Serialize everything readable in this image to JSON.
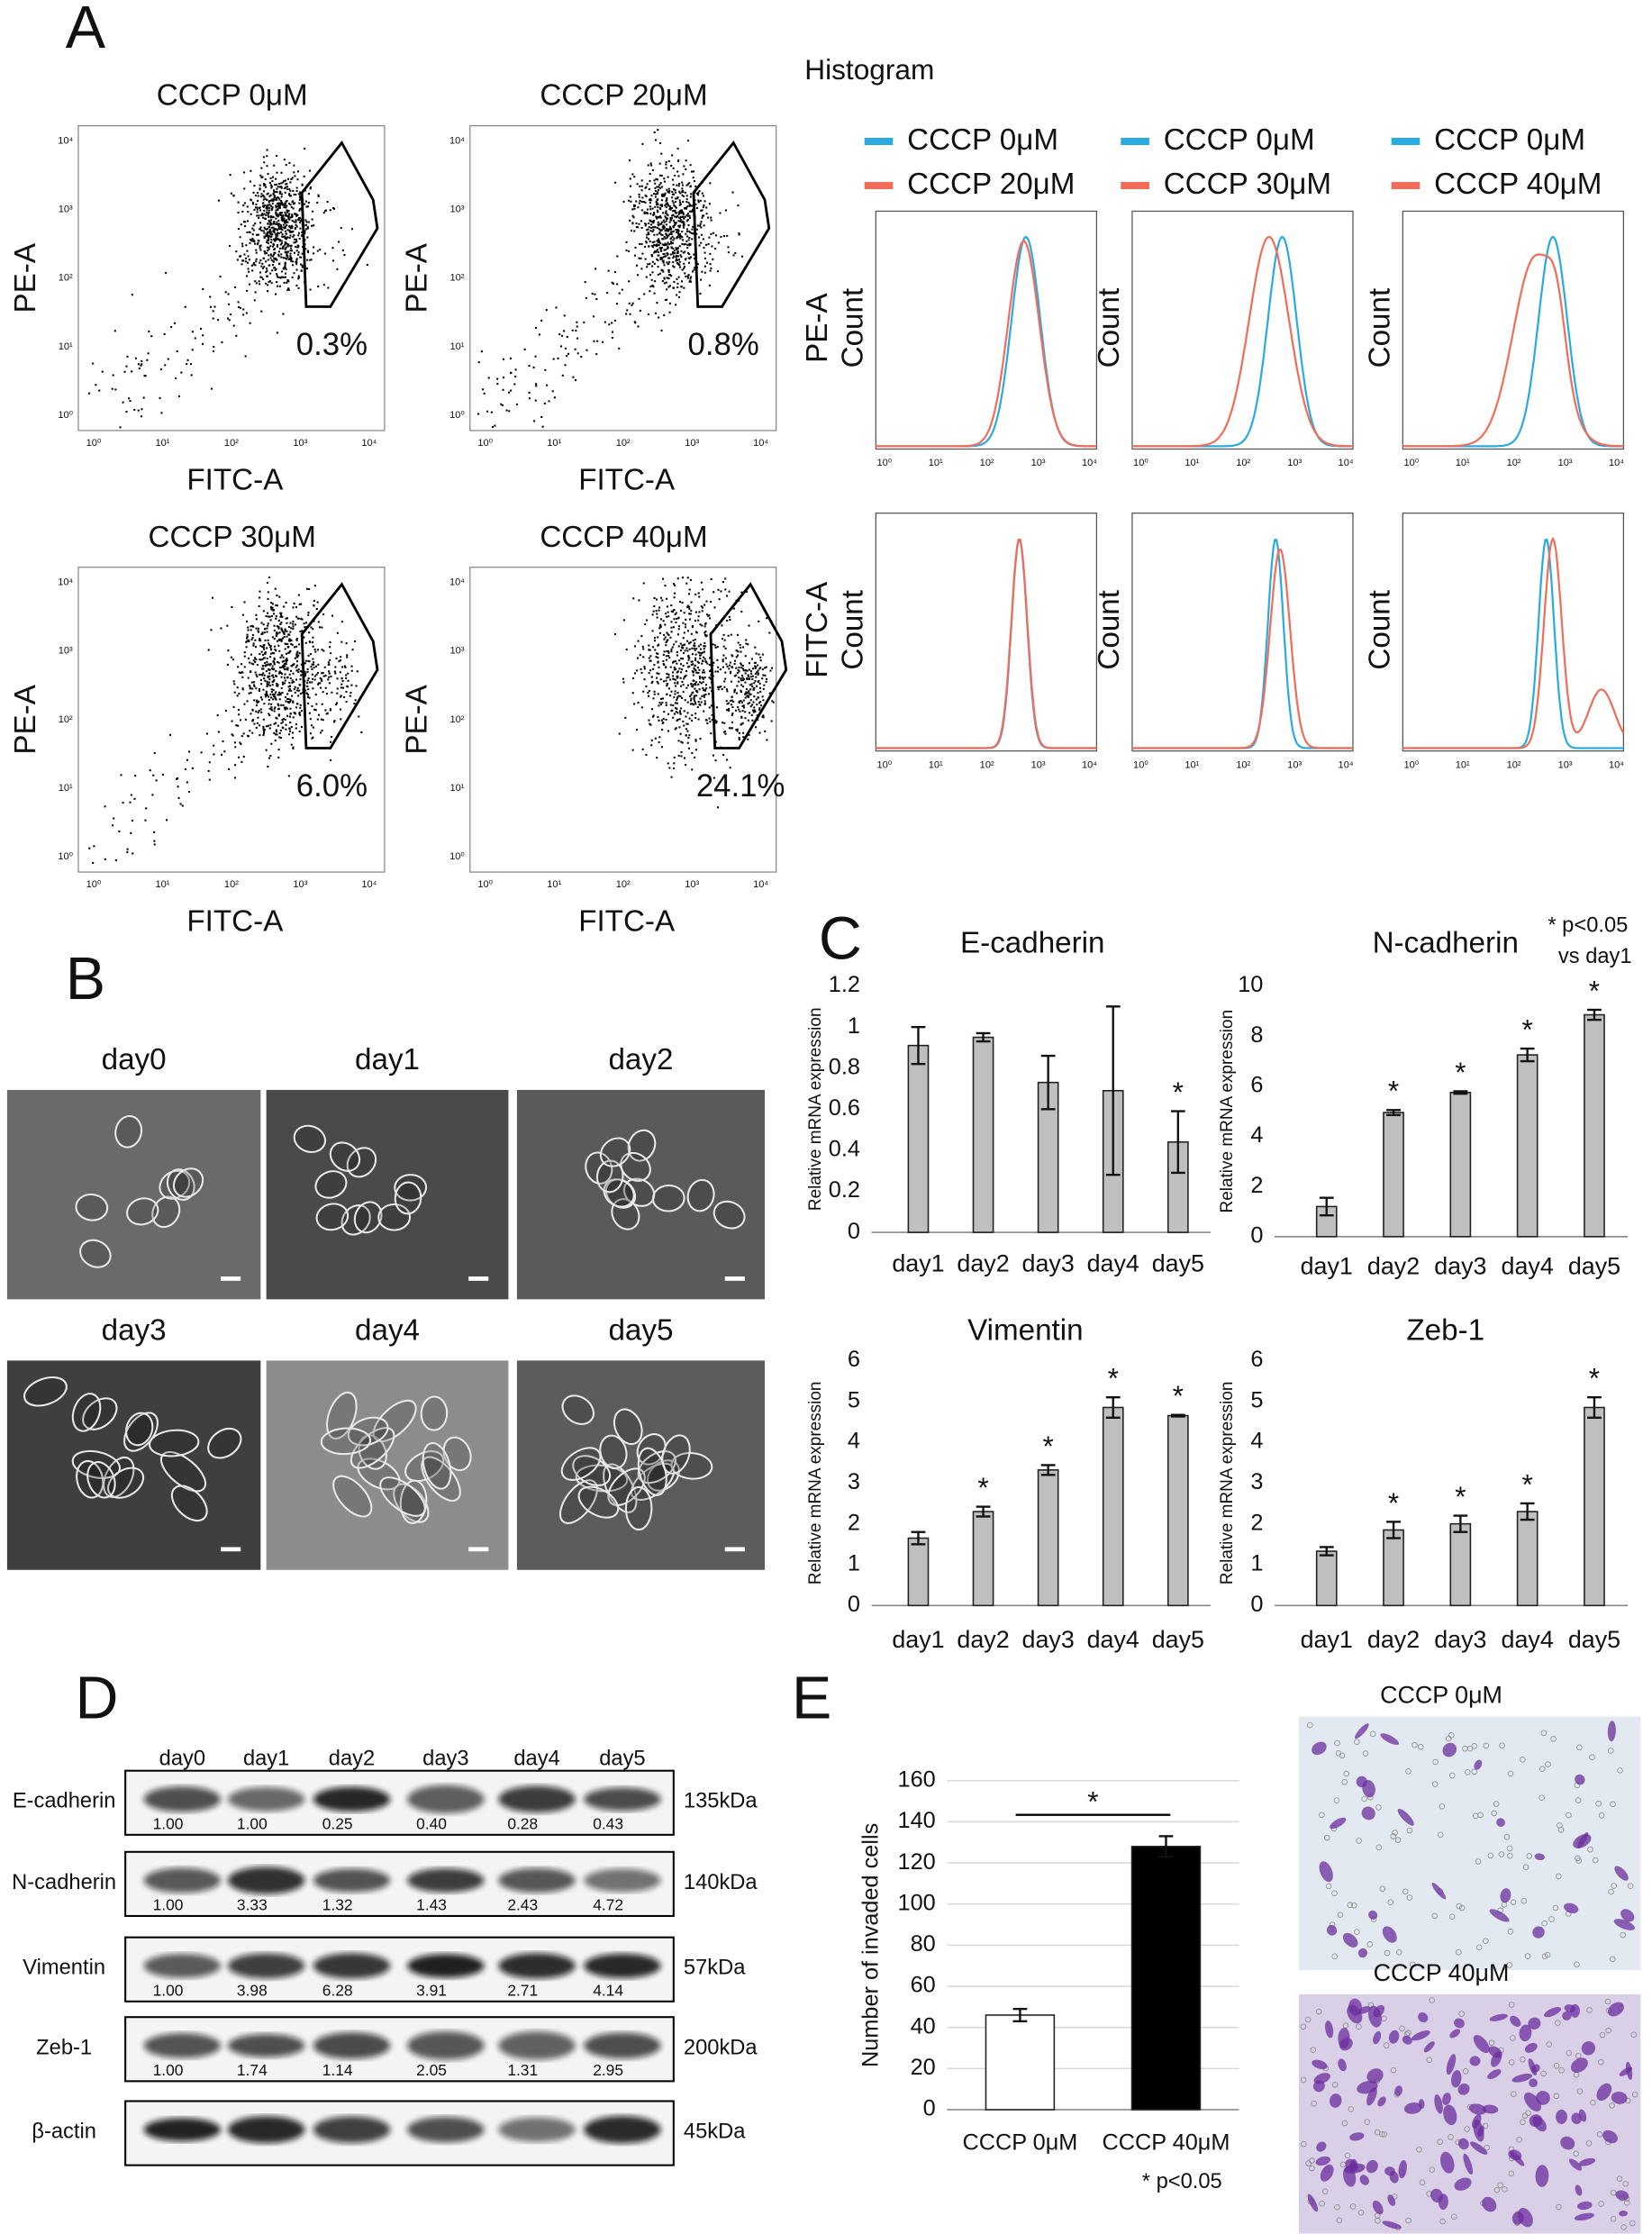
{
  "panel_labels": [
    "A",
    "B",
    "C",
    "D",
    "E"
  ],
  "flow_cytometry": {
    "x_label": "FITC-A",
    "y_label": "PE-A",
    "log_ticks": [
      "10⁰",
      "10¹",
      "10²",
      "10³",
      "10⁴"
    ],
    "plots": [
      {
        "title": "CCCP 0μM",
        "gate_percent": "0.3%"
      },
      {
        "title": "CCCP 20μM",
        "gate_percent": "0.8%"
      },
      {
        "title": "CCCP 30μM",
        "gate_percent": "6.0%"
      },
      {
        "title": "CCCP 40μM",
        "gate_percent": "24.1%"
      }
    ]
  },
  "histogram": {
    "title": "Histogram",
    "y_label": "Count",
    "channels": [
      "PE-A",
      "FITC-A"
    ],
    "control": {
      "name": "CCCP 0μM",
      "color": "#29abe2"
    },
    "treatments": [
      {
        "name": "CCCP 20μM",
        "color": "#f26c5a"
      },
      {
        "name": "CCCP 30μM",
        "color": "#f26c5a"
      },
      {
        "name": "CCCP 40μM",
        "color": "#f26c5a"
      }
    ]
  },
  "microscopy": {
    "images": [
      "day0",
      "day1",
      "day2",
      "day3",
      "day4",
      "day5"
    ]
  },
  "western_blot": {
    "lanes": [
      "day0",
      "day1",
      "day2",
      "day3",
      "day4",
      "day5"
    ],
    "rows": [
      {
        "name": "E-cadherin",
        "size": "135kDa",
        "quantification": [
          "1.00",
          "1.00",
          "0.25",
          "0.40",
          "0.28",
          "0.43"
        ]
      },
      {
        "name": "N-cadherin",
        "size": "140kDa",
        "quantification": [
          "1.00",
          "3.33",
          "1.32",
          "1.43",
          "2.43",
          "4.72"
        ]
      },
      {
        "name": "Vimentin",
        "size": "57kDa",
        "quantification": [
          "1.00",
          "3.98",
          "6.28",
          "3.91",
          "2.71",
          "4.14"
        ]
      },
      {
        "name": "Zeb-1",
        "size": "200kDa",
        "quantification": [
          "1.00",
          "1.74",
          "1.14",
          "2.05",
          "1.31",
          "2.95"
        ]
      },
      {
        "name": "β-actin",
        "size": "45kDa"
      }
    ]
  },
  "chart_data": [
    {
      "type": "bar",
      "title": "E-cadherin",
      "y_label": "Relative mRNA expression",
      "categories": [
        "day1",
        "day2",
        "day3",
        "day4",
        "day5"
      ],
      "values": [
        0.91,
        0.95,
        0.73,
        0.69,
        0.44
      ],
      "errors": [
        0.09,
        0.02,
        0.13,
        0.41,
        0.15
      ],
      "annotations": [
        null,
        null,
        null,
        null,
        "*"
      ],
      "color": "#bfbfbf",
      "ylim": [
        0,
        1.2
      ],
      "yticks": [
        0,
        0.2,
        0.4,
        0.6,
        0.8,
        1,
        1.2
      ],
      "grid": false
    },
    {
      "type": "bar",
      "title": "N-cadherin",
      "y_label": "Relative mRNA expression",
      "categories": [
        "day1",
        "day2",
        "day3",
        "day4",
        "day5"
      ],
      "values": [
        1.2,
        4.95,
        5.75,
        7.25,
        8.85
      ],
      "errors": [
        0.35,
        0.1,
        0.05,
        0.25,
        0.2
      ],
      "annotations": [
        null,
        "*",
        "*",
        "*",
        "*"
      ],
      "note": [
        "* p<0.05",
        "vs day1"
      ],
      "color": "#bfbfbf",
      "ylim": [
        0,
        10
      ],
      "yticks": [
        0,
        2,
        4,
        6,
        8,
        10
      ],
      "grid": false
    },
    {
      "type": "bar",
      "title": "Vimentin",
      "y_label": "Relative mRNA expression",
      "categories": [
        "day1",
        "day2",
        "day3",
        "day4",
        "day5"
      ],
      "values": [
        1.65,
        2.3,
        3.32,
        4.85,
        4.65
      ],
      "errors": [
        0.15,
        0.12,
        0.12,
        0.25,
        0.02
      ],
      "annotations": [
        null,
        "*",
        "*",
        "*",
        "*"
      ],
      "color": "#bfbfbf",
      "ylim": [
        0,
        6
      ],
      "yticks": [
        0,
        1,
        2,
        3,
        4,
        5,
        6
      ],
      "grid": false
    },
    {
      "type": "bar",
      "title": "Zeb-1",
      "y_label": "Relative mRNA expression",
      "categories": [
        "day1",
        "day2",
        "day3",
        "day4",
        "day5"
      ],
      "values": [
        1.33,
        1.85,
        2.0,
        2.3,
        4.85
      ],
      "errors": [
        0.1,
        0.2,
        0.2,
        0.2,
        0.25
      ],
      "annotations": [
        null,
        "*",
        "*",
        "*",
        "*"
      ],
      "color": "#bfbfbf",
      "ylim": [
        0,
        6
      ],
      "yticks": [
        0,
        1,
        2,
        3,
        4,
        5,
        6
      ],
      "grid": false
    },
    {
      "type": "bar",
      "y_label": "Number of invaded cells",
      "categories": [
        "CCCP 0μM",
        "CCCP 40μM"
      ],
      "values": [
        46,
        128
      ],
      "errors": [
        3,
        5
      ],
      "colors": [
        "#ffffff",
        "#000000"
      ],
      "significance": "*",
      "note": [
        "* p<0.05"
      ],
      "ylim": [
        0,
        160
      ],
      "yticks": [
        0,
        20,
        40,
        60,
        80,
        100,
        120,
        140,
        160
      ],
      "grid": true
    }
  ]
}
